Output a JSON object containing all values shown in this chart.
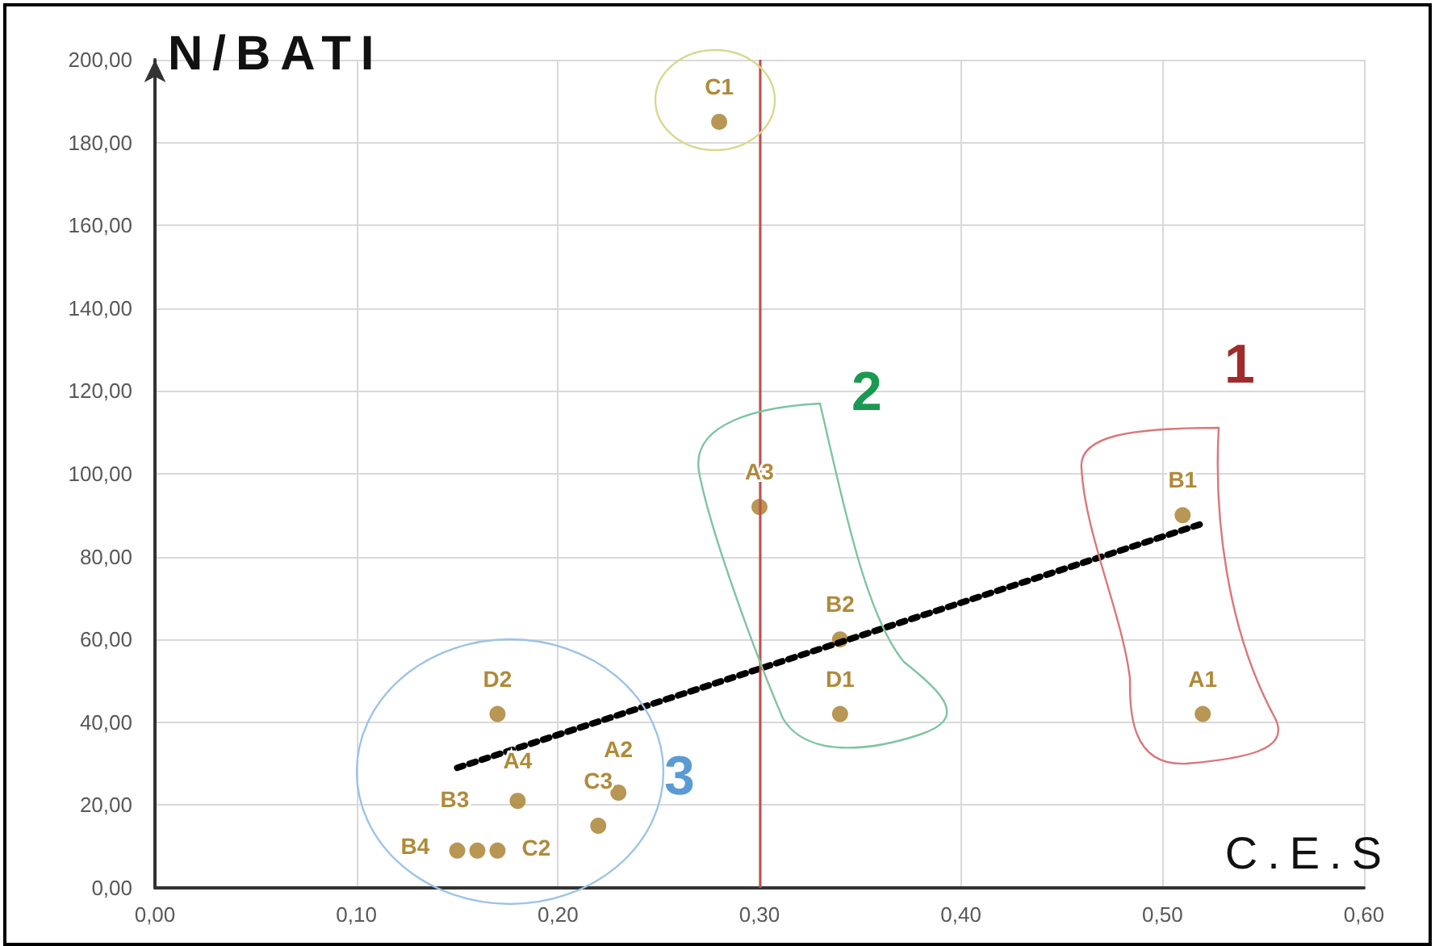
{
  "chart_data": {
    "type": "scatter",
    "xlabel": "C.E.S",
    "ylabel": "N/BATI",
    "xlim": [
      0,
      0.6
    ],
    "ylim": [
      0,
      200
    ],
    "xticks": [
      {
        "value": 0,
        "label": "0,00"
      },
      {
        "value": 0.1,
        "label": "0,10"
      },
      {
        "value": 0.2,
        "label": "0,20"
      },
      {
        "value": 0.3,
        "label": "0,30"
      },
      {
        "value": 0.4,
        "label": "0,40"
      },
      {
        "value": 0.5,
        "label": "0,50"
      },
      {
        "value": 0.6,
        "label": "0,60"
      }
    ],
    "yticks": [
      {
        "value": 0,
        "label": "0,00"
      },
      {
        "value": 20,
        "label": "20,00"
      },
      {
        "value": 40,
        "label": "40,00"
      },
      {
        "value": 60,
        "label": "60,00"
      },
      {
        "value": 80,
        "label": "80,00"
      },
      {
        "value": 100,
        "label": "100,00"
      },
      {
        "value": 120,
        "label": "120,00"
      },
      {
        "value": 140,
        "label": "140,00"
      },
      {
        "value": 160,
        "label": "160,00"
      },
      {
        "value": 180,
        "label": "180,00"
      },
      {
        "value": 200,
        "label": "200,00"
      }
    ],
    "grid": true,
    "series": [
      {
        "color": "#a67c28",
        "marker": "circle",
        "x": [
          0.28,
          0.3,
          0.34,
          0.34,
          0.51,
          0.52,
          0.17,
          0.18,
          0.23,
          0.22,
          0.16,
          0.15,
          0.17
        ],
        "values": [
          185,
          92,
          60,
          42,
          90,
          42,
          42,
          21,
          23,
          15,
          9,
          9,
          9
        ]
      },
      {
        "type": "line",
        "color": "#000000",
        "marker": "none",
        "line_style": "dotted",
        "x": [
          0.15,
          0.52
        ],
        "values": [
          29,
          88
        ]
      }
    ],
    "ref_lines": [
      {
        "axis": "x",
        "value": 0.3,
        "color": "#c0504d"
      }
    ],
    "annotations": [
      "1",
      "2",
      "3",
      {
        "text": "C1",
        "x": 0.28,
        "y": 185
      },
      {
        "text": "A3",
        "x": 0.3,
        "y": 92
      },
      {
        "text": "B2",
        "x": 0.34,
        "y": 60
      },
      {
        "text": "D1",
        "x": 0.34,
        "y": 42
      },
      {
        "text": "B1",
        "x": 0.51,
        "y": 90
      },
      {
        "text": "A1",
        "x": 0.52,
        "y": 42
      },
      {
        "text": "D2",
        "x": 0.17,
        "y": 42
      },
      {
        "text": "A4",
        "x": 0.18,
        "y": 21
      },
      {
        "text": "A2",
        "x": 0.23,
        "y": 23
      },
      {
        "text": "C3",
        "x": 0.22,
        "y": 15
      },
      {
        "text": "B3",
        "x": 0.16,
        "y": 9
      },
      {
        "text": "B4",
        "x": 0.15,
        "y": 9
      },
      {
        "text": "C2",
        "x": 0.17,
        "y": 9
      }
    ]
  }
}
